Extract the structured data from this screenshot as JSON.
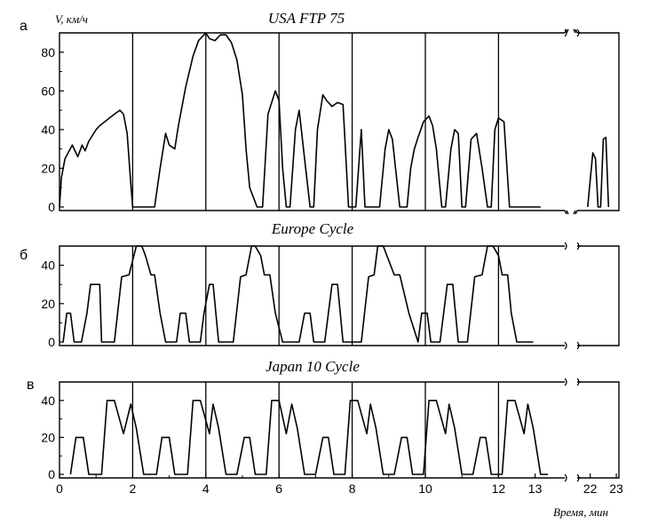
{
  "chart_data": [
    {
      "type": "line",
      "panel_letter": "а",
      "title": "USA FTP 75",
      "ylabel": "V, км/ч",
      "ylim": [
        0,
        90
      ],
      "yticks": [
        0,
        20,
        40,
        60,
        80
      ],
      "xlim": [
        0,
        14
      ],
      "break_x": [
        22,
        23
      ],
      "gridlines_x": [
        2,
        4,
        6,
        8,
        10,
        12
      ],
      "series": [
        {
          "x": [
            0,
            0.05,
            0.15,
            0.35,
            0.5,
            0.62,
            0.7,
            0.8,
            0.9,
            1.0,
            1.1,
            1.3,
            1.5,
            1.65,
            1.75,
            1.85,
            1.95,
            2.0,
            2.6,
            2.75,
            2.9,
            3.0,
            3.15,
            3.25,
            3.45,
            3.65,
            3.8,
            4.0,
            4.1,
            4.25,
            4.4,
            4.55,
            4.7,
            4.85,
            5.0,
            5.1,
            5.2,
            5.4,
            5.55,
            5.7,
            5.9,
            6.0,
            6.1,
            6.2,
            6.3,
            6.45,
            6.55,
            6.7,
            6.85,
            6.95,
            7.05,
            7.2,
            7.3,
            7.45,
            7.6,
            7.75,
            7.9,
            8.0,
            8.1,
            8.25,
            8.35,
            8.55,
            8.75,
            8.9,
            9.0,
            9.1,
            9.3,
            9.5,
            9.6,
            9.7,
            9.8,
            9.95,
            10.1,
            10.2,
            10.3,
            10.45,
            10.55,
            10.7,
            10.8,
            10.9,
            11.0,
            11.1,
            11.25,
            11.4,
            11.55,
            11.7,
            11.8,
            11.9,
            12.0,
            12.15,
            12.3,
            12.45,
            12.6,
            12.75,
            12.9,
            13.0,
            13.15
          ],
          "y": [
            0,
            15,
            25,
            32,
            26,
            32,
            29,
            34,
            37,
            40,
            42,
            45,
            48,
            50,
            48,
            38,
            12,
            0,
            0,
            20,
            38,
            32,
            30,
            42,
            62,
            78,
            86,
            90,
            87,
            86,
            89,
            89,
            85,
            76,
            58,
            30,
            10,
            0,
            0,
            48,
            60,
            55,
            20,
            0,
            0,
            40,
            50,
            25,
            0,
            0,
            40,
            58,
            55,
            52,
            54,
            53,
            0,
            0,
            0,
            40,
            0,
            0,
            0,
            30,
            40,
            35,
            0,
            0,
            20,
            30,
            36,
            44,
            47,
            42,
            30,
            0,
            0,
            30,
            40,
            38,
            0,
            0,
            35,
            38,
            20,
            0,
            0,
            40,
            46,
            44,
            0,
            0,
            0,
            0,
            0,
            0,
            0
          ]
        },
        {
          "x": [
            21.9,
            22.1,
            22.2,
            22.3,
            22.4,
            22.5,
            22.6,
            22.7
          ],
          "y": [
            0,
            28,
            25,
            0,
            0,
            35,
            36,
            0
          ]
        }
      ]
    },
    {
      "type": "line",
      "panel_letter": "б",
      "title": "Europe Cycle",
      "ylim": [
        0,
        50
      ],
      "yticks": [
        0,
        20,
        40
      ],
      "xlim": [
        0,
        14
      ],
      "break_x": [
        22,
        23
      ],
      "gridlines_x": [
        2,
        4,
        6,
        8,
        10,
        12
      ],
      "series": [
        {
          "x": [
            0.1,
            0.2,
            0.3,
            0.4,
            0.6,
            0.75,
            0.85,
            1.1,
            1.15,
            1.3,
            1.5,
            1.7,
            1.9,
            2.1,
            2.25,
            2.35,
            2.5,
            2.6,
            2.75,
            2.9,
            3.2,
            3.3,
            3.45,
            3.55,
            3.85,
            3.95,
            4.1,
            4.2,
            4.35,
            4.55,
            4.75,
            4.95,
            5.1,
            5.25,
            5.35,
            5.5,
            5.6,
            5.75,
            5.9,
            6.1,
            6.25,
            6.55,
            6.7,
            6.85,
            6.95,
            7.25,
            7.35,
            7.45,
            7.6,
            7.75,
            8.0,
            8.25,
            8.45,
            8.6,
            8.7,
            8.85,
            8.95,
            9.15,
            9.3,
            9.55,
            9.8,
            9.9,
            10.05,
            10.15,
            10.4,
            10.5,
            10.6,
            10.75,
            10.9,
            11.15,
            11.35,
            11.55,
            11.7,
            11.85,
            12.0,
            12.1,
            12.25,
            12.35,
            12.5,
            12.6,
            12.75,
            12.95
          ],
          "y": [
            0,
            15,
            15,
            0,
            0,
            15,
            30,
            30,
            0,
            0,
            0,
            34,
            35,
            50,
            50,
            45,
            35,
            35,
            15,
            0,
            0,
            15,
            15,
            0,
            0,
            15,
            30,
            30,
            0,
            0,
            0,
            34,
            35,
            50,
            50,
            45,
            35,
            35,
            15,
            0,
            0,
            0,
            15,
            15,
            0,
            0,
            15,
            30,
            30,
            0,
            0,
            0,
            34,
            35,
            50,
            50,
            45,
            35,
            35,
            15,
            0,
            15,
            15,
            0,
            0,
            15,
            30,
            30,
            0,
            0,
            34,
            35,
            50,
            50,
            45,
            35,
            35,
            15,
            0,
            0,
            0,
            0
          ]
        }
      ]
    },
    {
      "type": "line",
      "panel_letter": "в",
      "title": "Japan 10 Cycle",
      "xlabel": "Время, мин",
      "ylim": [
        0,
        50
      ],
      "yticks": [
        0,
        20,
        40
      ],
      "xlim": [
        0,
        14
      ],
      "xticks": [
        0,
        2,
        4,
        6,
        8,
        10,
        12,
        13
      ],
      "break_x": [
        22,
        23
      ],
      "gridlines_x": [
        2,
        4,
        6,
        8,
        10,
        12
      ],
      "series": [
        {
          "x": [
            0.3,
            0.45,
            0.65,
            0.8,
            1.15,
            1.3,
            1.5,
            1.75,
            1.95,
            2.1,
            2.3,
            2.5,
            2.65,
            2.8,
            3.0,
            3.15,
            3.5,
            3.65,
            3.85,
            4.1,
            4.2,
            4.35,
            4.55,
            4.75,
            4.85,
            5.05,
            5.2,
            5.35,
            5.65,
            5.8,
            6.0,
            6.2,
            6.35,
            6.5,
            6.7,
            6.9,
            7.0,
            7.2,
            7.35,
            7.5,
            7.8,
            7.95,
            8.15,
            8.4,
            8.5,
            8.65,
            8.85,
            9.05,
            9.15,
            9.35,
            9.5,
            9.65,
            9.95,
            10.1,
            10.3,
            10.55,
            10.65,
            10.8,
            11.0,
            11.15,
            11.3,
            11.5,
            11.65,
            11.8,
            12.1,
            12.25,
            12.45,
            12.7,
            12.8,
            12.95,
            13.15,
            13.35
          ],
          "y": [
            0,
            20,
            20,
            0,
            0,
            40,
            40,
            22,
            38,
            25,
            0,
            0,
            0,
            20,
            20,
            0,
            0,
            40,
            40,
            22,
            38,
            25,
            0,
            0,
            0,
            20,
            20,
            0,
            0,
            40,
            40,
            22,
            38,
            25,
            0,
            0,
            0,
            20,
            20,
            0,
            0,
            40,
            40,
            22,
            38,
            25,
            0,
            0,
            0,
            20,
            20,
            0,
            0,
            40,
            40,
            22,
            38,
            25,
            0,
            0,
            0,
            20,
            20,
            0,
            0,
            40,
            40,
            22,
            38,
            25,
            0,
            0
          ]
        }
      ]
    }
  ]
}
